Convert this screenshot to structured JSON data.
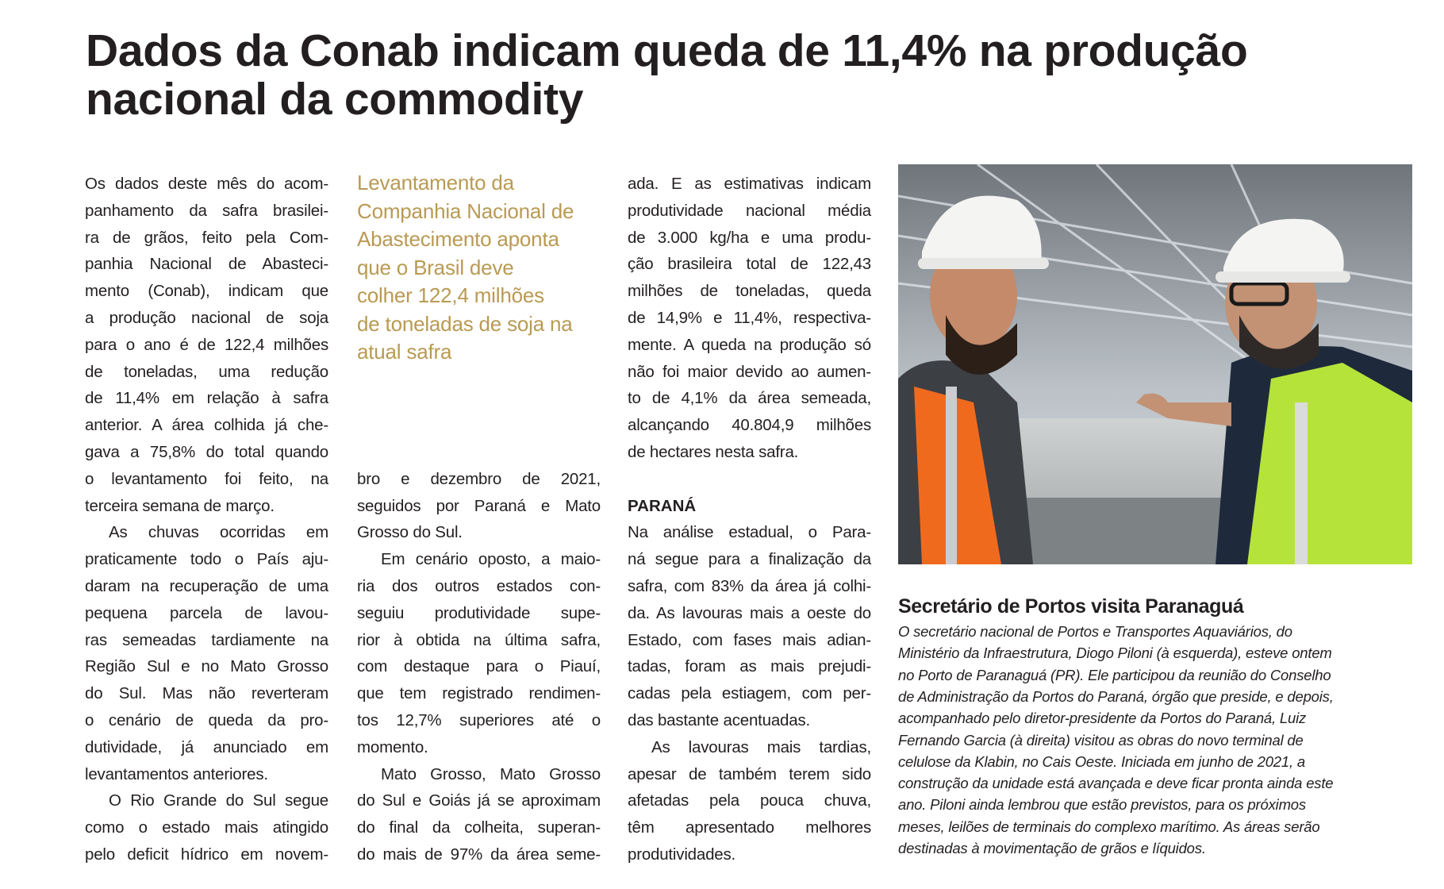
{
  "article": {
    "headline": [
      "Dados da Conab indicam queda de 11,4% na produção",
      "nacional da commodity"
    ],
    "pull_quote": [
      "Levantamento da",
      "Companhia Nacional de",
      "Abastecimento aponta",
      "que o Brasil deve",
      "colher 122,4 milhões",
      "de toneladas de soja na",
      "atual safra"
    ],
    "columns": [
      {
        "paragraphs": [
          [
            "Os dados deste mês do acom-",
            "panhamento da safra brasilei-",
            "ra de grãos, feito pela Com-",
            "panhia Nacional de Abasteci-",
            "mento (Conab), indicam que",
            "a produção nacional de soja",
            "para o ano é de 122,4 milhões",
            "de toneladas, uma redução",
            "de 11,4% em relação à safra",
            "anterior. A área colhida já che-",
            "gava a 75,8% do total quando",
            "o levantamento foi feito, na",
            "terceira semana de março."
          ],
          [
            "As chuvas ocorridas em",
            "praticamente todo o País aju-",
            "daram na recuperação de uma",
            "pequena parcela de lavou-",
            "ras semeadas tardiamente na",
            "Região Sul e no Mato Grosso",
            "do Sul. Mas não reverteram",
            "o cenário de queda da pro-",
            "dutividade, já anunciado em",
            "levantamentos anteriores."
          ],
          [
            "O Rio Grande do Sul segue",
            "como o estado mais atingido",
            "pelo deficit hídrico em novem-"
          ]
        ]
      },
      {
        "paragraphs": [
          [
            "bro e dezembro de 2021,",
            "seguidos por Paraná e Mato",
            "Grosso do Sul."
          ],
          [
            "Em cenário oposto, a maio-",
            "ria dos outros estados con-",
            "seguiu produtividade supe-",
            "rior à obtida na última safra,",
            "com destaque para o Piauí,",
            "que tem registrado rendimen-",
            "tos 12,7% superiores até o",
            "momento."
          ],
          [
            "Mato Grosso, Mato Grosso",
            "do Sul e Goiás já se aproximam",
            "do final da colheita, superan-",
            "do mais de 97% da área seme-"
          ]
        ]
      },
      {
        "paragraphs": [
          [
            "ada. E as estimativas indicam",
            "produtividade nacional média",
            "de 3.000 kg/ha e uma produ-",
            "ção brasileira total de 122,43",
            "milhões de toneladas, queda",
            "de 14,9% e 11,4%, respectiva-",
            "mente. A queda na produção só",
            "não foi maior devido ao aumen-",
            "to de 4,1% da área semeada,",
            "alcançando 40.804,9 milhões",
            "de hectares nesta safra."
          ]
        ]
      }
    ],
    "subheading": "PARANÁ",
    "subheading_paragraphs": [
      [
        "Na análise estadual, o Para-",
        "ná segue para a finalização da",
        "safra, com 83% da área já colhi-",
        "da. As lavouras mais a oeste do",
        "Estado, com fases mais adian-",
        "tadas, foram as mais prejudi-",
        "cadas pela estiagem, com per-",
        "das bastante acentuadas."
      ],
      [
        "As lavouras mais tardias,",
        "apesar de também terem sido",
        "afetadas pela pouca chuva,",
        "têm apresentado melhores",
        "produtividades."
      ]
    ],
    "caption_title": "Secretário de Portos visita Paranaguá",
    "caption": [
      "O secretário nacional de Portos e Transportes Aquaviários, do",
      "Ministério da Infraestrutura, Diogo Piloni (à esquerda), esteve ontem",
      "no Porto de Paranaguá (PR). Ele participou da reunião do Conselho",
      "de Administração da Portos do Paraná, órgão que preside, e depois,",
      "acompanhado pelo diretor-presidente da Portos do Paraná, Luiz",
      "Fernando Garcia (à direita) visitou as obras do novo terminal de",
      "celulose da Klabin, no Cais Oeste. Iniciada em junho de 2021, a",
      "construção da unidade está avançada e deve ficar pronta ainda este",
      "ano. Piloni ainda  lembrou que estão previstos, para os próximos",
      "meses, leilões de terminais do complexo marítimo. As áreas serão",
      "destinadas à movimentação de grãos e líquidos."
    ]
  }
}
